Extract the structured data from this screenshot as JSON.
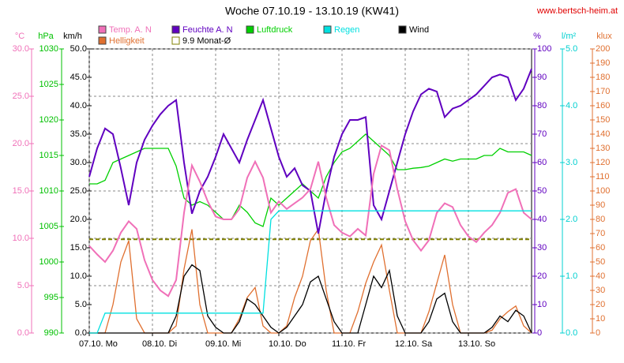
{
  "chart_data": {
    "type": "line",
    "title": "Woche 07.10.19 - 13.10.19 (KW41)",
    "source": "www.bertsch-heim.at",
    "x": [
      0,
      3,
      6,
      9,
      12,
      15,
      18,
      21,
      24,
      27,
      30,
      33,
      36,
      39,
      42,
      45,
      48,
      51,
      54,
      57,
      60,
      63,
      66,
      69,
      72,
      75,
      78,
      81,
      84,
      87,
      90,
      93,
      96,
      99,
      102,
      105,
      108,
      111,
      114,
      117,
      120,
      123,
      126,
      129,
      132,
      135,
      138,
      141,
      144,
      147,
      150,
      153,
      156,
      159,
      162,
      165,
      168
    ],
    "xlim": [
      0,
      168
    ],
    "xticks": [
      {
        "value": 0,
        "label": "07.10.  Mo"
      },
      {
        "value": 24,
        "label": "08.10.  Di"
      },
      {
        "value": 48,
        "label": "09.10.  Mi"
      },
      {
        "value": 72,
        "label": "10.10.  Do"
      },
      {
        "value": 96,
        "label": "11.10.  Fr"
      },
      {
        "value": 120,
        "label": "12.10.  Sa"
      },
      {
        "value": 144,
        "label": "13.10.  So"
      }
    ],
    "grid": true,
    "axes": [
      {
        "label": "°C",
        "color": "#f070b8",
        "lim": [
          0,
          30
        ],
        "ticks": [
          {
            "value": 0,
            "label": "0.0"
          },
          {
            "value": 5,
            "label": "5.0"
          },
          {
            "value": 10,
            "label": "10.0"
          },
          {
            "value": 15,
            "label": "15.0"
          },
          {
            "value": 20,
            "label": "20.0"
          },
          {
            "value": 25,
            "label": "25.0"
          },
          {
            "value": 30,
            "label": "30.0"
          }
        ]
      },
      {
        "label": "hPa",
        "color": "#00c000",
        "lim": [
          990,
          1030
        ],
        "ticks": [
          990,
          995,
          1000,
          1005,
          1010,
          1015,
          1020,
          1025,
          1030
        ]
      },
      {
        "label": "km/h",
        "color": "#000000",
        "lim": [
          0,
          50
        ],
        "ticks": [
          {
            "value": 0,
            "label": "0.0"
          },
          {
            "value": 5,
            "label": "5.0"
          },
          {
            "value": 10,
            "label": "10.0"
          },
          {
            "value": 15,
            "label": "15.0"
          },
          {
            "value": 20,
            "label": "20.0"
          },
          {
            "value": 25,
            "label": "25.0"
          },
          {
            "value": 30,
            "label": "30.0"
          },
          {
            "value": 35,
            "label": "35.0"
          },
          {
            "value": 40,
            "label": "40.0"
          },
          {
            "value": 45,
            "label": "45.0"
          },
          {
            "value": 50,
            "label": "50.0"
          }
        ]
      },
      {
        "label": "%",
        "color": "#6000c0",
        "lim": [
          0,
          100
        ],
        "ticks": [
          0,
          10,
          20,
          30,
          40,
          50,
          60,
          70,
          80,
          90,
          100
        ]
      },
      {
        "label": "l/m²",
        "color": "#00d0d0",
        "lim": [
          0,
          5
        ],
        "ticks": [
          {
            "value": 0,
            "label": "0.0"
          },
          {
            "value": 1,
            "label": "1.0"
          },
          {
            "value": 2,
            "label": "2.0"
          },
          {
            "value": 3,
            "label": "3.0"
          },
          {
            "value": 4,
            "label": "4.0"
          },
          {
            "value": 5,
            "label": "5.0"
          }
        ]
      },
      {
        "label": "klux",
        "color": "#e07030",
        "lim": [
          0,
          200
        ],
        "ticks": [
          0,
          10,
          20,
          30,
          40,
          50,
          60,
          70,
          80,
          90,
          100,
          110,
          120,
          130,
          140,
          150,
          160,
          170,
          180,
          190,
          200
        ]
      }
    ],
    "series": [
      {
        "name": "Temp. A. N",
        "color": "#f070b8",
        "axis": 0,
        "values": [
          9.2,
          8.3,
          7.5,
          8.7,
          10.6,
          11.8,
          11.0,
          7.7,
          5.6,
          4.5,
          3.9,
          5.6,
          12.7,
          17.7,
          16.0,
          13.9,
          12.3,
          12.0,
          12.0,
          13.1,
          16.4,
          18.1,
          16.4,
          12.7,
          13.9,
          13.1,
          13.7,
          14.3,
          15.2,
          18.1,
          14.3,
          11.4,
          10.6,
          10.2,
          11.0,
          10.3,
          16.8,
          19.8,
          19.3,
          15.2,
          11.8,
          9.8,
          8.7,
          9.8,
          12.7,
          13.7,
          13.3,
          11.4,
          10.2,
          9.6,
          10.6,
          11.4,
          12.7,
          14.8,
          15.2,
          12.7,
          12.0
        ]
      },
      {
        "name": "Feuchte A. N",
        "color": "#6000c0",
        "axis": 3,
        "values": [
          55,
          65,
          72,
          70,
          58,
          45,
          60,
          68,
          73,
          77,
          80,
          82,
          60,
          42,
          50,
          55,
          62,
          70,
          65,
          60,
          68,
          75,
          82,
          72,
          62,
          55,
          58,
          52,
          50,
          35,
          50,
          62,
          70,
          75,
          75,
          76,
          45,
          40,
          50,
          60,
          70,
          78,
          84,
          86,
          85,
          76,
          79,
          80,
          82,
          84,
          87,
          90,
          91,
          90,
          82,
          86,
          93
        ]
      },
      {
        "name": "Luftdruck",
        "color": "#00d000",
        "axis": 1,
        "values": [
          1011.0,
          1011.0,
          1011.5,
          1014.0,
          1014.5,
          1015.0,
          1015.5,
          1016.0,
          1016.0,
          1016.0,
          1016.0,
          1013.5,
          1009.0,
          1008.0,
          1008.5,
          1008.0,
          1007.0,
          1006.0,
          1006.0,
          1008.0,
          1007.0,
          1005.5,
          1005.0,
          1009.0,
          1008.0,
          1009.0,
          1010.0,
          1011.0,
          1010.0,
          1009.0,
          1012.0,
          1014.0,
          1015.5,
          1016.0,
          1017.0,
          1018.0,
          1017.0,
          1016.0,
          1015.0,
          1013.0,
          1013.0,
          1013.2,
          1013.3,
          1013.5,
          1014.0,
          1014.5,
          1014.2,
          1014.5,
          1014.5,
          1014.5,
          1015.0,
          1015.0,
          1016.0,
          1015.5,
          1015.5,
          1015.5,
          1015.0
        ]
      },
      {
        "name": "Regen",
        "color": "#00e0e0",
        "axis": 4,
        "values": [
          0,
          0,
          0.35,
          0.35,
          0.35,
          0.35,
          0.35,
          0.35,
          0.35,
          0.35,
          0.35,
          0.35,
          0.35,
          0.35,
          0.35,
          0.35,
          0.35,
          0.35,
          0.35,
          0.35,
          0.35,
          0.35,
          0.35,
          2.0,
          2.15,
          2.15,
          2.15,
          2.15,
          2.15,
          2.15,
          2.15,
          2.15,
          2.15,
          2.15,
          2.15,
          2.15,
          2.15,
          2.15,
          2.15,
          2.15,
          2.15,
          2.15,
          2.15,
          2.15,
          2.15,
          2.15,
          2.15,
          2.15,
          2.15,
          2.15,
          2.15,
          2.15,
          2.15,
          2.15,
          2.15,
          2.15,
          2.15
        ]
      },
      {
        "name": "Wind",
        "color": "#000000",
        "axis": 2,
        "values": [
          0,
          0,
          0,
          0,
          0,
          0,
          0,
          0,
          0,
          0,
          0,
          3,
          10,
          12,
          11,
          3,
          1,
          0,
          0,
          2,
          6,
          5,
          3,
          1,
          0,
          1,
          3,
          5,
          9,
          10,
          6,
          2,
          0,
          0,
          0,
          5,
          10,
          8,
          11,
          3,
          0,
          0,
          0,
          2,
          6,
          7,
          2,
          0,
          0,
          0,
          0,
          1,
          3,
          2,
          4,
          3,
          0
        ]
      },
      {
        "name": "Helligkeit",
        "color": "#e07030",
        "axis": 5,
        "values": [
          0,
          0,
          0,
          20,
          50,
          65,
          10,
          0,
          0,
          0,
          0,
          5,
          45,
          73,
          20,
          0,
          0,
          0,
          0,
          10,
          25,
          32,
          5,
          0,
          0,
          5,
          25,
          40,
          65,
          73,
          30,
          0,
          0,
          0,
          15,
          35,
          50,
          62,
          30,
          0,
          0,
          0,
          0,
          15,
          35,
          55,
          20,
          0,
          0,
          0,
          0,
          2,
          10,
          15,
          19,
          5,
          0
        ]
      }
    ],
    "monthly_avg": {
      "name": "9.9 Monat-Ø",
      "value": 9.9,
      "axis": 0,
      "color": "#808000"
    }
  }
}
